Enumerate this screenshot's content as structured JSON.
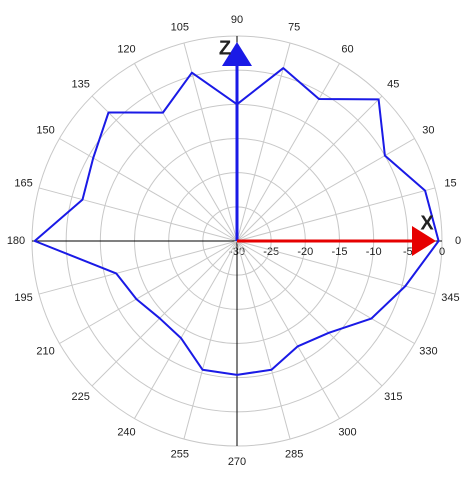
{
  "chart_data": {
    "type": "polar",
    "x": [
      0,
      15,
      30,
      45,
      60,
      75,
      90,
      105,
      120,
      135,
      150,
      165,
      180,
      195,
      210,
      225,
      240,
      255,
      270,
      285,
      300,
      315,
      330,
      345
    ],
    "series": [
      {
        "color": "#1a1ae6",
        "values": [
          -0.5,
          -1.5,
          -5,
          -0.7,
          -6,
          -3.8,
          -10,
          -4.5,
          -8.3,
          -3.4,
          -5.7,
          -6.6,
          -0.4,
          -11.7,
          -13,
          -14,
          -13.6,
          -10.5,
          -10.4,
          -10.5,
          -12.2,
          -11,
          -7.3,
          -4.5
        ]
      }
    ],
    "rlim": [
      -30,
      0
    ],
    "rticks": [
      -30,
      -25,
      -20,
      -15,
      -10,
      -5,
      0
    ],
    "axis_labels": [
      {
        "text": "Z",
        "color": "#1a1ae6"
      },
      {
        "text": "X",
        "color": "#e60000"
      }
    ],
    "grid": true
  }
}
